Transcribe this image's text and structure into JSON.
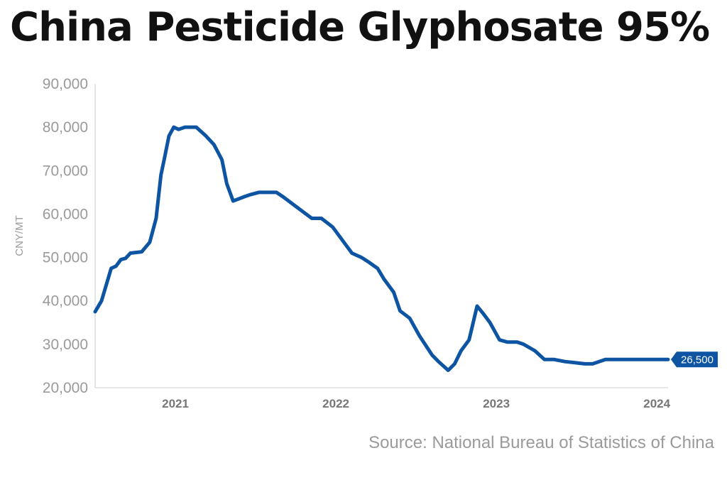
{
  "title": "China Pesticide Glyphosate 95%",
  "source": "Source: National Bureau of Statistics of China",
  "chart_data": {
    "type": "line",
    "title": "China Pesticide Glyphosate 95%",
    "ylabel": "CNY/MT",
    "xlabel": "",
    "ylim": [
      20000,
      90000
    ],
    "yticks": [
      "20,000",
      "30,000",
      "40,000",
      "50,000",
      "60,000",
      "70,000",
      "80,000",
      "90,000"
    ],
    "xticks": [
      {
        "label": "2021",
        "value": 2021.0
      },
      {
        "label": "2022",
        "value": 2022.0
      },
      {
        "label": "2023",
        "value": 2023.0
      },
      {
        "label": "2024",
        "value": 2024.0
      }
    ],
    "xlim": [
      2020.5,
      2024.07
    ],
    "color": "#0d54a3",
    "end_label": "26,500",
    "series": [
      {
        "x": [
          2020.5,
          2020.54,
          2020.6,
          2020.63,
          2020.66,
          2020.69,
          2020.72,
          2020.79,
          2020.84,
          2020.88,
          2020.91,
          2020.93,
          2020.96,
          2020.99,
          2021.02,
          2021.06,
          2021.13,
          2021.19,
          2021.24,
          2021.29,
          2021.32,
          2021.36,
          2021.43,
          2021.47,
          2021.52,
          2021.57,
          2021.63,
          2021.67,
          2021.76,
          2021.85,
          2021.91,
          2021.98,
          2022.05,
          2022.1,
          2022.16,
          2022.21,
          2022.26,
          2022.3,
          2022.36,
          2022.4,
          2022.46,
          2022.52,
          2022.6,
          2022.64,
          2022.7,
          2022.74,
          2022.78,
          2022.83,
          2022.88,
          2022.92,
          2022.96,
          2023.02,
          2023.07,
          2023.13,
          2023.17,
          2023.24,
          2023.3,
          2023.36,
          2023.43,
          2023.48,
          2023.55,
          2023.6,
          2023.68,
          2023.8,
          2023.91,
          2024.0,
          2024.07
        ],
        "y": [
          37500,
          40000,
          47500,
          48000,
          49500,
          49800,
          51000,
          51300,
          53500,
          59000,
          69000,
          72500,
          78000,
          80000,
          79500,
          80000,
          80000,
          78000,
          76000,
          72500,
          67000,
          63000,
          64000,
          64500,
          65000,
          65000,
          65000,
          64000,
          61500,
          59000,
          59000,
          57000,
          53500,
          51000,
          50000,
          48800,
          47500,
          45000,
          42000,
          37700,
          36000,
          32000,
          27500,
          26000,
          24000,
          25500,
          28500,
          31000,
          38800,
          37000,
          35000,
          31000,
          30500,
          30500,
          30000,
          28500,
          26500,
          26500,
          26000,
          25800,
          25500,
          25500,
          26500,
          26500,
          26500,
          26500,
          26500
        ]
      }
    ]
  }
}
